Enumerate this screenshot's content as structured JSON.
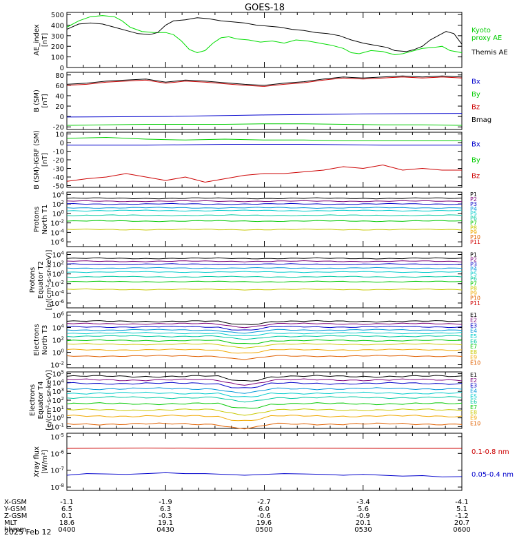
{
  "title": "GOES-18",
  "date": "2025 Feb 12",
  "colors": {
    "black": "#000000",
    "green": "#00cc00",
    "blue": "#0000cc",
    "red": "#cc0000",
    "ae_kyoto": "#00dd00",
    "ch": [
      "#000000",
      "#7a007a",
      "#0000c8",
      "#0096d8",
      "#00cccc",
      "#00c8a0",
      "#00c800",
      "#c8c800",
      "#f0a800",
      "#e06000",
      "#d00000",
      "#800000"
    ]
  },
  "chart_data": [
    {
      "type": "line",
      "ylabel": "AE_index\n[nT]",
      "ylim": [
        0,
        520
      ],
      "yticks": [
        0,
        100,
        200,
        300,
        400,
        500
      ],
      "legend": [
        {
          "text": "Kyoto\nproxy AE",
          "color": "#00cc00"
        },
        {
          "text": "Themis AE",
          "color": "#000000"
        }
      ],
      "series": [
        {
          "name": "Kyoto proxy AE",
          "color": "#00dd00",
          "points": [
            [
              0,
              380
            ],
            [
              0.03,
              440
            ],
            [
              0.06,
              480
            ],
            [
              0.09,
              490
            ],
            [
              0.12,
              480
            ],
            [
              0.14,
              440
            ],
            [
              0.16,
              380
            ],
            [
              0.19,
              340
            ],
            [
              0.22,
              330
            ],
            [
              0.25,
              330
            ],
            [
              0.27,
              310
            ],
            [
              0.29,
              250
            ],
            [
              0.31,
              170
            ],
            [
              0.33,
              140
            ],
            [
              0.35,
              160
            ],
            [
              0.37,
              230
            ],
            [
              0.39,
              280
            ],
            [
              0.41,
              290
            ],
            [
              0.43,
              270
            ],
            [
              0.46,
              260
            ],
            [
              0.49,
              240
            ],
            [
              0.52,
              250
            ],
            [
              0.55,
              230
            ],
            [
              0.58,
              260
            ],
            [
              0.61,
              250
            ],
            [
              0.64,
              230
            ],
            [
              0.67,
              210
            ],
            [
              0.7,
              180
            ],
            [
              0.72,
              140
            ],
            [
              0.74,
              130
            ],
            [
              0.77,
              160
            ],
            [
              0.8,
              150
            ],
            [
              0.83,
              120
            ],
            [
              0.85,
              130
            ],
            [
              0.87,
              150
            ],
            [
              0.9,
              180
            ],
            [
              0.93,
              190
            ],
            [
              0.95,
              200
            ],
            [
              0.97,
              160
            ],
            [
              1.0,
              140
            ]
          ]
        },
        {
          "name": "Themis AE",
          "color": "#000000",
          "points": [
            [
              0,
              360
            ],
            [
              0.03,
              410
            ],
            [
              0.06,
              420
            ],
            [
              0.09,
              410
            ],
            [
              0.12,
              380
            ],
            [
              0.15,
              350
            ],
            [
              0.18,
              320
            ],
            [
              0.21,
              310
            ],
            [
              0.23,
              330
            ],
            [
              0.25,
              400
            ],
            [
              0.27,
              440
            ],
            [
              0.3,
              450
            ],
            [
              0.33,
              470
            ],
            [
              0.36,
              460
            ],
            [
              0.39,
              440
            ],
            [
              0.42,
              430
            ],
            [
              0.45,
              420
            ],
            [
              0.48,
              400
            ],
            [
              0.51,
              390
            ],
            [
              0.54,
              380
            ],
            [
              0.57,
              360
            ],
            [
              0.6,
              350
            ],
            [
              0.63,
              330
            ],
            [
              0.66,
              320
            ],
            [
              0.69,
              300
            ],
            [
              0.72,
              260
            ],
            [
              0.75,
              230
            ],
            [
              0.78,
              210
            ],
            [
              0.81,
              190
            ],
            [
              0.83,
              160
            ],
            [
              0.86,
              150
            ],
            [
              0.88,
              170
            ],
            [
              0.9,
              200
            ],
            [
              0.92,
              260
            ],
            [
              0.94,
              300
            ],
            [
              0.96,
              340
            ],
            [
              0.98,
              320
            ],
            [
              1.0,
              220
            ]
          ]
        }
      ]
    },
    {
      "type": "line",
      "ylabel": "B (SM)\n[nT]",
      "ylim": [
        -25,
        85
      ],
      "yticks": [
        -20,
        0,
        20,
        40,
        60,
        80
      ],
      "legend": [
        {
          "text": "Bx",
          "color": "#0000cc"
        },
        {
          "text": "By",
          "color": "#00cc00"
        },
        {
          "text": "Bz",
          "color": "#cc0000"
        },
        {
          "text": "Bmag",
          "color": "#000000"
        }
      ],
      "series": [
        {
          "name": "Bx",
          "color": "#0000cc",
          "points": [
            [
              0,
              -1
            ],
            [
              0.25,
              0
            ],
            [
              0.5,
              3
            ],
            [
              0.75,
              5
            ],
            [
              1.0,
              6
            ]
          ]
        },
        {
          "name": "By",
          "color": "#00cc00",
          "points": [
            [
              0,
              -17
            ],
            [
              0.1,
              -16
            ],
            [
              0.2,
              -15
            ],
            [
              0.3,
              -15
            ],
            [
              0.4,
              -15
            ],
            [
              0.5,
              -14
            ],
            [
              0.6,
              -14
            ],
            [
              0.7,
              -15
            ],
            [
              0.8,
              -16
            ],
            [
              0.9,
              -16
            ],
            [
              1.0,
              -17
            ]
          ]
        },
        {
          "name": "Bz",
          "color": "#cc0000",
          "points": [
            [
              0,
              60
            ],
            [
              0.05,
              62
            ],
            [
              0.1,
              66
            ],
            [
              0.15,
              68
            ],
            [
              0.2,
              70
            ],
            [
              0.25,
              64
            ],
            [
              0.3,
              68
            ],
            [
              0.35,
              66
            ],
            [
              0.4,
              63
            ],
            [
              0.45,
              60
            ],
            [
              0.5,
              58
            ],
            [
              0.55,
              62
            ],
            [
              0.6,
              65
            ],
            [
              0.65,
              70
            ],
            [
              0.7,
              74
            ],
            [
              0.75,
              72
            ],
            [
              0.8,
              74
            ],
            [
              0.85,
              76
            ],
            [
              0.9,
              74
            ],
            [
              0.95,
              76
            ],
            [
              1.0,
              74
            ]
          ]
        },
        {
          "name": "Bmag",
          "color": "#000000",
          "points": [
            [
              0,
              62
            ],
            [
              0.05,
              64
            ],
            [
              0.1,
              68
            ],
            [
              0.15,
              70
            ],
            [
              0.2,
              72
            ],
            [
              0.25,
              66
            ],
            [
              0.3,
              70
            ],
            [
              0.35,
              68
            ],
            [
              0.4,
              65
            ],
            [
              0.45,
              62
            ],
            [
              0.5,
              60
            ],
            [
              0.55,
              64
            ],
            [
              0.6,
              67
            ],
            [
              0.65,
              72
            ],
            [
              0.7,
              76
            ],
            [
              0.75,
              74
            ],
            [
              0.8,
              76
            ],
            [
              0.85,
              78
            ],
            [
              0.9,
              76
            ],
            [
              0.95,
              78
            ],
            [
              1.0,
              76
            ]
          ]
        }
      ]
    },
    {
      "type": "line",
      "ylabel": "B (SM)-IGRF (SM)\n[nT]",
      "ylim": [
        -52,
        12
      ],
      "yticks": [
        -50,
        -40,
        -30,
        -20,
        -10,
        0,
        10
      ],
      "legend": [
        {
          "text": "Bx",
          "color": "#0000cc"
        },
        {
          "text": "By",
          "color": "#00cc00"
        },
        {
          "text": "Bz",
          "color": "#cc0000"
        }
      ],
      "series": [
        {
          "name": "Bx",
          "color": "#0000cc",
          "points": [
            [
              0,
              -3
            ],
            [
              0.2,
              -3
            ],
            [
              0.4,
              -2
            ],
            [
              0.6,
              -2
            ],
            [
              0.8,
              -3
            ],
            [
              1.0,
              -3
            ]
          ]
        },
        {
          "name": "By",
          "color": "#00cc00",
          "points": [
            [
              0,
              5
            ],
            [
              0.1,
              6
            ],
            [
              0.2,
              4
            ],
            [
              0.3,
              3
            ],
            [
              0.4,
              4
            ],
            [
              0.5,
              3
            ],
            [
              0.6,
              3
            ],
            [
              0.7,
              2
            ],
            [
              0.8,
              2
            ],
            [
              0.9,
              2
            ],
            [
              1.0,
              2
            ]
          ]
        },
        {
          "name": "Bz",
          "color": "#cc0000",
          "points": [
            [
              0,
              -45
            ],
            [
              0.05,
              -42
            ],
            [
              0.1,
              -40
            ],
            [
              0.15,
              -36
            ],
            [
              0.2,
              -40
            ],
            [
              0.25,
              -44
            ],
            [
              0.3,
              -40
            ],
            [
              0.35,
              -46
            ],
            [
              0.4,
              -42
            ],
            [
              0.45,
              -38
            ],
            [
              0.5,
              -36
            ],
            [
              0.55,
              -36
            ],
            [
              0.6,
              -34
            ],
            [
              0.65,
              -32
            ],
            [
              0.7,
              -28
            ],
            [
              0.75,
              -30
            ],
            [
              0.8,
              -26
            ],
            [
              0.85,
              -32
            ],
            [
              0.9,
              -30
            ],
            [
              0.95,
              -32
            ],
            [
              1.0,
              -32
            ]
          ]
        }
      ]
    },
    {
      "type": "line",
      "log": true,
      "ylabel": "Protons\nNorth T1",
      "ylim": [
        -7,
        4.5
      ],
      "yticks": [
        4,
        2,
        0,
        -2,
        -4,
        -6
      ],
      "legend": [
        "P1",
        "P2",
        "P3",
        "P4",
        "P5",
        "P6",
        "P7",
        "P8",
        "P9",
        "P10",
        "P11"
      ],
      "levels": [
        3.2,
        2.6,
        2.0,
        1.2,
        0.6,
        -0.4,
        -1.6,
        -3.4
      ]
    },
    {
      "type": "line",
      "log": true,
      "ylabel": "Protons\nEquator T2\n[p/(cm²-s-sr-keV)]",
      "ylim": [
        -7,
        4.5
      ],
      "yticks": [
        4,
        2,
        0,
        -2,
        -4,
        -6
      ],
      "legend": [
        "P1",
        "P2",
        "P3",
        "P4",
        "P5",
        "P6",
        "P7",
        "P8",
        "P9",
        "P10",
        "P11"
      ],
      "levels": [
        3.2,
        2.6,
        2.0,
        1.2,
        0.4,
        -0.6,
        -1.6,
        -3.2
      ]
    },
    {
      "type": "line",
      "log": true,
      "ylabel": "Electrons\nNorth T3",
      "ylim": [
        -2.5,
        6.5
      ],
      "yticks": [
        6,
        4,
        2,
        0,
        -2
      ],
      "legend": [
        "E1",
        "E2",
        "E3",
        "E4",
        "E5",
        "E6",
        "E7",
        "E8",
        "E9",
        "E10"
      ],
      "levels": [
        5.0,
        4.6,
        4.1,
        3.6,
        3.1,
        2.6,
        1.9,
        1.3,
        0.4,
        -0.6
      ]
    },
    {
      "type": "line",
      "log": true,
      "ylabel": "Electrons\nEquator T4\n[e/(cm²-s-sr-keV)]",
      "ylim": [
        -1.2,
        5.2
      ],
      "yticks": [
        5,
        4,
        3,
        2,
        1,
        0,
        -1
      ],
      "legend": [
        "E1",
        "E2",
        "E3",
        "E4",
        "E5",
        "E6",
        "E7",
        "E8",
        "E9",
        "E10"
      ],
      "levels": [
        4.7,
        4.3,
        3.9,
        3.3,
        2.8,
        2.3,
        1.6,
        0.9,
        0.2,
        -0.7
      ]
    },
    {
      "type": "line",
      "log": true,
      "ylabel": "Xray flux\n[W/m²]",
      "ylim": [
        -8.2,
        -4.8
      ],
      "yticks": [
        -5,
        -6,
        -7,
        -8
      ],
      "legend": [
        {
          "text": "0.1-0.8 nm",
          "color": "#cc0000"
        },
        {
          "text": "0.05-0.4 nm",
          "color": "#0000cc"
        }
      ],
      "series": [
        {
          "name": "0.1-0.8 nm",
          "color": "#cc0000",
          "points": [
            [
              0,
              -5.7
            ],
            [
              0.2,
              -5.68
            ],
            [
              0.4,
              -5.7
            ],
            [
              0.6,
              -5.69
            ],
            [
              0.8,
              -5.7
            ],
            [
              1.0,
              -5.7
            ]
          ]
        },
        {
          "name": "0.05-0.4 nm",
          "color": "#0000cc",
          "points": [
            [
              0,
              -7.3
            ],
            [
              0.05,
              -7.2
            ],
            [
              0.1,
              -7.22
            ],
            [
              0.15,
              -7.25
            ],
            [
              0.2,
              -7.2
            ],
            [
              0.25,
              -7.15
            ],
            [
              0.3,
              -7.2
            ],
            [
              0.35,
              -7.2
            ],
            [
              0.4,
              -7.25
            ],
            [
              0.45,
              -7.3
            ],
            [
              0.5,
              -7.25
            ],
            [
              0.55,
              -7.2
            ],
            [
              0.6,
              -7.22
            ],
            [
              0.65,
              -7.25
            ],
            [
              0.7,
              -7.3
            ],
            [
              0.75,
              -7.25
            ],
            [
              0.8,
              -7.3
            ],
            [
              0.85,
              -7.35
            ],
            [
              0.9,
              -7.32
            ],
            [
              0.95,
              -7.4
            ],
            [
              1.0,
              -7.38
            ]
          ]
        }
      ]
    }
  ],
  "xaxis": {
    "row_labels": [
      "X-GSM",
      "Y-GSM",
      "Z-GSM",
      "MLT",
      "hhmm"
    ],
    "columns": [
      [
        "-1.1",
        "6.5",
        "0.1",
        "18.6",
        "0400"
      ],
      [
        "-1.9",
        "6.3",
        "-0.3",
        "19.1",
        "0430"
      ],
      [
        "-2.7",
        "6.0",
        "-0.6",
        "19.6",
        "0500"
      ],
      [
        "-3.4",
        "5.6",
        "-0.9",
        "20.1",
        "0530"
      ],
      [
        "-4.1",
        "5.1",
        "-1.2",
        "20.7",
        "0600"
      ]
    ]
  }
}
